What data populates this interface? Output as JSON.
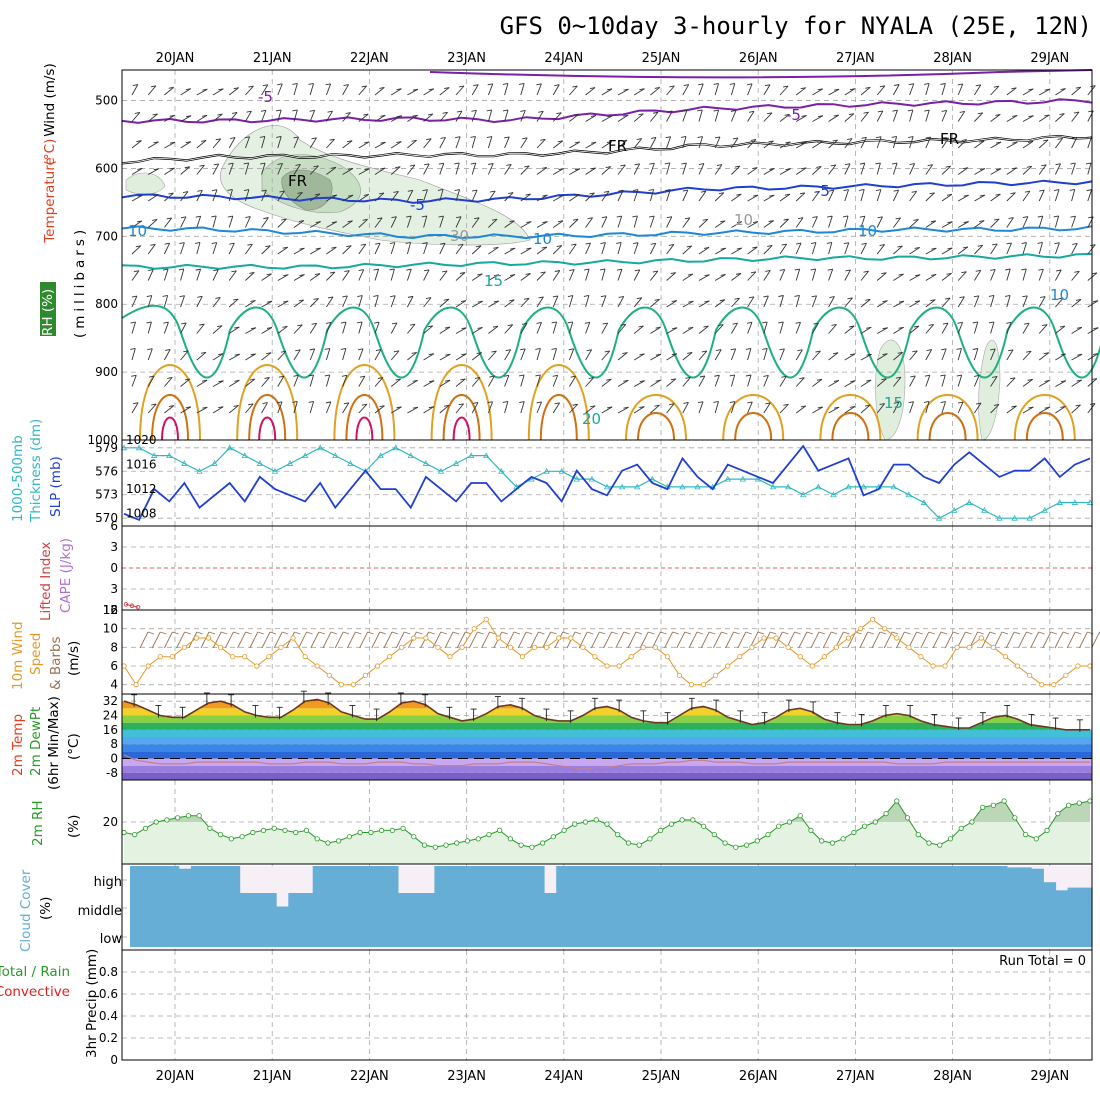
{
  "header": {
    "title": "GFS 0~10day 3-hourly for NYALA (25E, 12N)"
  },
  "dates": [
    "20JAN",
    "21JAN",
    "22JAN",
    "23JAN",
    "24JAN",
    "25JAN",
    "26JAN",
    "27JAN",
    "28JAN",
    "29JAN"
  ],
  "labels": {
    "p1_a": "Wind (m/s)",
    "p1_b": "Temperature",
    "p1_c": "(°C)",
    "p1_rh": "RH (%)",
    "p1_mb": "(millibars)",
    "p2_a": "1000-500mb",
    "p2_b": "Thickness (dm)",
    "p2_c": "SLP (mb)",
    "p3_a": "Lifted Index",
    "p3_b": "CAPE (J/kg)",
    "p4_a": "10m Wind",
    "p4_b": "Speed",
    "p4_c": "& Barbs",
    "p4_unit": "(m/s)",
    "p5_a": "2m Temp",
    "p5_b": "2m DewPt",
    "p5_c": "(6hr Min/Max)",
    "p5_unit": "(°C)",
    "p6_a": "2m RH",
    "p6_unit": "(%)",
    "p7_a": "Cloud Cover",
    "p7_unit": "(%)",
    "p8_a": "Total / Rain",
    "p8_b": "Convective",
    "p8_unit": "3hr Precip (mm)",
    "run_total": "Run Total = 0"
  },
  "colors": {
    "rh_green": "#2f8a2f",
    "temp_purple": "#7a1fa8",
    "temp_blue": "#1f3fd0",
    "temp_lightblue": "#1e88d8",
    "temp_teal": "#17a8a0",
    "temp_green": "#1fb080",
    "temp_orange": "#e0a020",
    "temp_darkorange": "#d07010",
    "temp_red": "#d01060",
    "slp": "#1f3fd0",
    "thickness": "#30b8c0",
    "li": "#d04040",
    "cape": "#b070d0",
    "wind": "#e39a2a",
    "barb": "#9a7050",
    "rh2m": "#2a9a2a",
    "cloud": "#67aed6",
    "precip_green": "#2a9a2a",
    "precip_red": "#e02020"
  },
  "chart_data": [
    {
      "panel": "upper-air",
      "type": "contour",
      "y_label_text": "(millibars)",
      "y_axis": {
        "ticks": [
          500,
          600,
          700,
          800,
          900,
          1000
        ],
        "range": [
          455,
          1000
        ],
        "reversed": true
      },
      "contour_labels": [
        "-5",
        "-5",
        "FR",
        "FR",
        "FR",
        "-5",
        "-5",
        "10",
        "10",
        "10",
        "15",
        "20",
        "15",
        "10",
        "10",
        "30"
      ],
      "isotherms": [
        {
          "label": "-5",
          "pressure": [
            530,
            530,
            528,
            527,
            529,
            520,
            512,
            508,
            505,
            503,
            500
          ]
        },
        {
          "label": "FR",
          "pressure": [
            590,
            583,
            582,
            580,
            580,
            575,
            566,
            563,
            560,
            558,
            553
          ]
        },
        {
          "label": "-5",
          "pressure": [
            640,
            642,
            645,
            648,
            645,
            638,
            630,
            628,
            625,
            622,
            620
          ]
        },
        {
          "label": "10",
          "pressure": [
            688,
            690,
            695,
            700,
            700,
            698,
            695,
            693,
            690,
            690,
            688
          ]
        },
        {
          "label": "15",
          "pressure": [
            745,
            745,
            745,
            742,
            740,
            738,
            735,
            732,
            732,
            730,
            728
          ]
        }
      ]
    },
    {
      "panel": "slp-thickness",
      "type": "line",
      "slp_axis": {
        "ticks": [
          1008,
          1012,
          1016,
          1020
        ],
        "range": [
          1006,
          1020
        ]
      },
      "thickness_axis": {
        "ticks": [
          570,
          573,
          576,
          579
        ],
        "range": [
          569,
          580
        ]
      },
      "series": [
        {
          "name": "SLP (mb)",
          "values": [
            1008,
            1007,
            1012,
            1010,
            1013,
            1009,
            1011,
            1013,
            1010,
            1014,
            1012,
            1011,
            1010,
            1013,
            1009,
            1012,
            1015,
            1012,
            1012,
            1009,
            1014,
            1012,
            1010,
            1013,
            1013,
            1010,
            1012,
            1014,
            1013,
            1010,
            1015,
            1012,
            1011,
            1015,
            1016,
            1013,
            1012,
            1017,
            1014,
            1012,
            1016,
            1015,
            1014,
            1013,
            1016,
            1019,
            1015,
            1016,
            1017,
            1011,
            1012,
            1016,
            1016,
            1014,
            1013,
            1016,
            1018,
            1016,
            1014,
            1015,
            1015,
            1017,
            1014,
            1016,
            1017
          ]
        },
        {
          "name": "1000-500mb Thickness (dm)",
          "values": [
            579,
            579,
            578,
            578,
            577,
            576,
            577,
            579,
            578,
            577,
            576,
            577,
            578,
            579,
            578,
            577,
            576,
            578,
            579,
            578,
            577,
            576,
            577,
            578,
            578,
            576,
            574,
            575,
            576,
            576,
            575,
            575,
            574,
            574,
            574,
            575,
            574,
            574,
            574,
            574,
            575,
            575,
            575,
            574,
            574,
            573,
            574,
            573,
            574,
            574,
            574,
            574,
            573,
            572,
            570,
            571,
            572,
            571,
            570,
            570,
            570,
            571,
            572,
            572,
            572
          ]
        }
      ]
    },
    {
      "panel": "cape-li",
      "type": "line",
      "li_axis": {
        "ticks": [
          -6,
          -3,
          0,
          3,
          6
        ],
        "range": [
          -6,
          6
        ]
      },
      "cape_axis": {
        "ticks": [
          12
        ],
        "range": [
          0,
          12
        ]
      },
      "series": [
        {
          "name": "Lifted Index",
          "values": [
            5.2,
            5.4,
            5.6
          ]
        }
      ]
    },
    {
      "panel": "wind10m",
      "type": "line",
      "y_axis": {
        "ticks": [
          4,
          6,
          8,
          10,
          12
        ],
        "range": [
          3,
          12
        ]
      },
      "series": [
        {
          "name": "10m Wind Speed",
          "values": [
            6,
            4,
            6,
            7,
            7,
            8,
            9,
            9,
            8,
            7,
            7,
            6,
            7,
            8,
            9,
            7,
            6,
            5,
            4,
            4,
            5,
            6,
            7,
            8,
            9,
            9,
            8,
            7,
            8,
            10,
            11,
            9,
            8,
            7,
            8,
            8,
            9,
            9,
            8,
            7,
            6,
            6,
            7,
            8,
            8,
            7,
            5,
            4,
            4,
            5,
            6,
            7,
            8,
            9,
            9,
            8,
            7,
            6,
            7,
            8,
            9,
            10,
            11,
            10,
            9,
            8,
            7,
            6,
            6,
            8,
            8,
            9,
            8,
            7,
            6,
            5,
            4,
            4,
            5,
            6,
            6
          ]
        }
      ]
    },
    {
      "panel": "temp2m",
      "type": "line",
      "y_axis": {
        "ticks": [
          -8,
          0,
          8,
          16,
          24,
          32
        ],
        "range": [
          -12,
          36
        ]
      },
      "series": [
        {
          "name": "2m Temp",
          "values": [
            32,
            30,
            27,
            24,
            23,
            23,
            27,
            31,
            32,
            30,
            26,
            24,
            23,
            23,
            27,
            32,
            33,
            31,
            26,
            24,
            22,
            22,
            26,
            31,
            32,
            30,
            25,
            23,
            21,
            22,
            25,
            29,
            30,
            28,
            24,
            22,
            21,
            21,
            24,
            28,
            29,
            27,
            23,
            21,
            20,
            20,
            24,
            28,
            29,
            27,
            23,
            21,
            19,
            20,
            23,
            27,
            28,
            26,
            22,
            20,
            19,
            19,
            21,
            24,
            25,
            24,
            21,
            19,
            18,
            17,
            17,
            20,
            23,
            24,
            22,
            19,
            18,
            17,
            16,
            16,
            16
          ]
        },
        {
          "name": "2m DewPt",
          "values": [
            2,
            -1,
            -2,
            -3,
            -3,
            -3,
            -2,
            -2,
            -2,
            -2,
            -2,
            -2,
            -3,
            -3,
            -3,
            -2,
            -2,
            -2,
            -3,
            -3,
            -3,
            -2,
            -2,
            -2,
            -3,
            -3,
            -4,
            -4,
            -4,
            -3,
            -3,
            -3,
            -2,
            -2,
            -2,
            -3,
            -4,
            -5,
            -6,
            -5,
            -5,
            -4,
            -3,
            -3,
            -3,
            -2,
            -2,
            -1,
            -1,
            -2,
            -2,
            -2,
            -3,
            -3,
            -3,
            -2,
            -2,
            -2,
            -2,
            -2,
            -2,
            -2,
            -2,
            -2,
            -3,
            -3,
            -3,
            -3,
            -2,
            -2,
            -2,
            -2,
            -2,
            -2,
            -2,
            -2,
            -2,
            -2,
            -2,
            -2,
            -2
          ]
        }
      ]
    },
    {
      "panel": "rh2m",
      "type": "area",
      "y_axis": {
        "ticks": [
          20
        ],
        "range": [
          0,
          40
        ]
      },
      "series": [
        {
          "name": "2m RH",
          "values": [
            15,
            14,
            17,
            20,
            21,
            22,
            23,
            23,
            17,
            14,
            12,
            13,
            15,
            16,
            17,
            16,
            15,
            16,
            12,
            10,
            11,
            13,
            15,
            15,
            16,
            16,
            17,
            13,
            9,
            8,
            9,
            10,
            11,
            12,
            14,
            16,
            12,
            9,
            8,
            10,
            13,
            16,
            19,
            20,
            21,
            19,
            14,
            10,
            9,
            12,
            16,
            19,
            21,
            21,
            18,
            14,
            10,
            8,
            9,
            11,
            14,
            18,
            20,
            23,
            16,
            11,
            10,
            12,
            15,
            18,
            20,
            24,
            30,
            22,
            14,
            10,
            9,
            12,
            17,
            20,
            27,
            28,
            30,
            22,
            14,
            12,
            16,
            24,
            28,
            29,
            30
          ]
        }
      ]
    },
    {
      "panel": "cloud",
      "type": "bar",
      "rows": [
        "high",
        "middle",
        "low"
      ],
      "series": [
        {
          "name": "high",
          "values": [
            100,
            100,
            100,
            100,
            90,
            100,
            100,
            100,
            100,
            0,
            0,
            0,
            0,
            0,
            0,
            100,
            100,
            100,
            100,
            100,
            100,
            100,
            0,
            0,
            0,
            100,
            100,
            100,
            100,
            100,
            100,
            100,
            100,
            100,
            0,
            100,
            100,
            100,
            100,
            100,
            100,
            100,
            100,
            100,
            100,
            100,
            100,
            100,
            100,
            100,
            100,
            100,
            100,
            100,
            100,
            100,
            100,
            100,
            100,
            100,
            100,
            100,
            100,
            100,
            100,
            100,
            100,
            100,
            100,
            100,
            100,
            100,
            95,
            95,
            90,
            40,
            10,
            20,
            20
          ]
        },
        {
          "name": "middle",
          "values": [
            100,
            100,
            100,
            100,
            100,
            100,
            100,
            100,
            100,
            100,
            100,
            100,
            50,
            100,
            100,
            100,
            100,
            100,
            100,
            100,
            100,
            100,
            100,
            100,
            100,
            100,
            100,
            100,
            100,
            100,
            100,
            100,
            100,
            100,
            100,
            100,
            100,
            100,
            100,
            100,
            100,
            100,
            100,
            100,
            100,
            100,
            100,
            100,
            100,
            100,
            100,
            100,
            100,
            100,
            100,
            100,
            100,
            100,
            100,
            100,
            100,
            100,
            100,
            100,
            100,
            100,
            100,
            100,
            100,
            100,
            100,
            100,
            100,
            100,
            100,
            100,
            100,
            100,
            100
          ]
        },
        {
          "name": "low",
          "values": [
            100,
            100,
            100,
            100,
            100,
            100,
            100,
            100,
            100,
            100,
            100,
            100,
            100,
            100,
            100,
            100,
            100,
            100,
            100,
            100,
            100,
            100,
            100,
            100,
            100,
            100,
            100,
            100,
            100,
            100,
            100,
            100,
            100,
            100,
            100,
            100,
            100,
            100,
            100,
            100,
            100,
            100,
            100,
            100,
            100,
            100,
            100,
            100,
            100,
            100,
            100,
            100,
            100,
            100,
            100,
            100,
            100,
            100,
            100,
            100,
            100,
            100,
            100,
            100,
            100,
            100,
            100,
            100,
            100,
            100,
            100,
            100,
            100,
            100,
            100,
            100,
            100,
            100,
            100
          ]
        }
      ]
    },
    {
      "panel": "precip",
      "type": "bar",
      "y_axis": {
        "ticks": [
          0,
          0.2,
          0.4,
          0.6,
          0.8
        ],
        "range": [
          0,
          1
        ]
      },
      "series": [
        {
          "name": "Total / Rain",
          "values": []
        },
        {
          "name": "Convective",
          "values": []
        }
      ]
    }
  ]
}
